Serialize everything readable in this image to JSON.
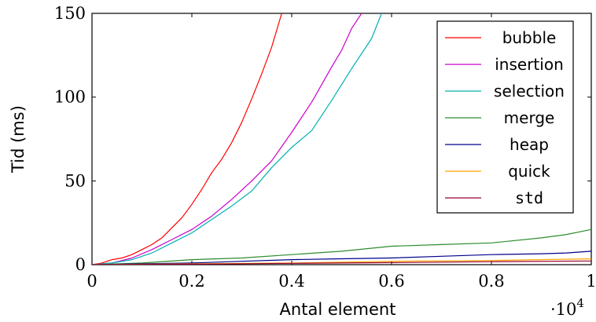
{
  "chart_data": {
    "type": "line",
    "xlabel": "Antal element",
    "ylabel": "Tid (ms)",
    "x_multiplier": "·10",
    "x_multiplier_exp": "4",
    "xlim": [
      0,
      1
    ],
    "ylim": [
      0,
      150
    ],
    "x_ticks": [
      0,
      0.2,
      0.4,
      0.6,
      0.8,
      1
    ],
    "x_tick_labels": [
      "0",
      "0.2",
      "0.4",
      "0.6",
      "0.8",
      "1"
    ],
    "y_ticks": [
      0,
      50,
      100,
      150
    ],
    "y_tick_labels": [
      "0",
      "50",
      "100",
      "150"
    ],
    "grid": false,
    "legend_position": "top-right",
    "series": [
      {
        "name": "bubble",
        "color": "#ff0000",
        "x": [
          0,
          0.02,
          0.04,
          0.06,
          0.08,
          0.1,
          0.12,
          0.14,
          0.16,
          0.18,
          0.2,
          0.22,
          0.24,
          0.26,
          0.28,
          0.3,
          0.32,
          0.34,
          0.36,
          0.38
        ],
        "y": [
          0,
          1,
          3,
          4,
          6,
          9,
          12,
          16,
          22,
          28,
          36,
          45,
          55,
          63,
          73,
          85,
          99,
          114,
          130,
          150
        ]
      },
      {
        "name": "insertion",
        "color": "#cc00cc",
        "x": [
          0,
          0.04,
          0.08,
          0.12,
          0.16,
          0.2,
          0.24,
          0.28,
          0.32,
          0.36,
          0.4,
          0.44,
          0.48,
          0.5,
          0.52,
          0.54
        ],
        "y": [
          0,
          1,
          4,
          9,
          15,
          21,
          29,
          39,
          50,
          62,
          79,
          97,
          118,
          128,
          141,
          150
        ]
      },
      {
        "name": "selection",
        "color": "#00b0b0",
        "x": [
          0,
          0.04,
          0.08,
          0.12,
          0.16,
          0.2,
          0.24,
          0.28,
          0.32,
          0.36,
          0.4,
          0.44,
          0.48,
          0.52,
          0.56,
          0.58
        ],
        "y": [
          0,
          1,
          3,
          7,
          13,
          19,
          27,
          35,
          44,
          58,
          70,
          80,
          98,
          117,
          135,
          150
        ]
      },
      {
        "name": "merge",
        "color": "#2e8b2e",
        "x": [
          0,
          0.1,
          0.2,
          0.3,
          0.4,
          0.5,
          0.6,
          0.7,
          0.8,
          0.9,
          0.95,
          1
        ],
        "y": [
          0,
          1,
          3,
          4,
          6,
          8,
          11,
          12,
          13,
          16,
          18,
          21
        ]
      },
      {
        "name": "heap",
        "color": "#00008b",
        "x": [
          0,
          0.1,
          0.2,
          0.3,
          0.4,
          0.5,
          0.6,
          0.7,
          0.8,
          0.9,
          0.95,
          1
        ],
        "y": [
          0,
          0.5,
          1,
          2,
          3,
          3.5,
          4,
          5,
          6,
          6.5,
          7,
          8
        ]
      },
      {
        "name": "quick",
        "color": "#ffa500",
        "x": [
          0,
          0.2,
          0.4,
          0.6,
          0.8,
          1
        ],
        "y": [
          0,
          0.5,
          1,
          2,
          2.5,
          3.5
        ]
      },
      {
        "name": "std",
        "color": "#990033",
        "x": [
          0,
          0.2,
          0.4,
          0.6,
          0.8,
          1
        ],
        "y": [
          0,
          0.3,
          0.8,
          1.2,
          1.8,
          2.2
        ]
      }
    ]
  }
}
